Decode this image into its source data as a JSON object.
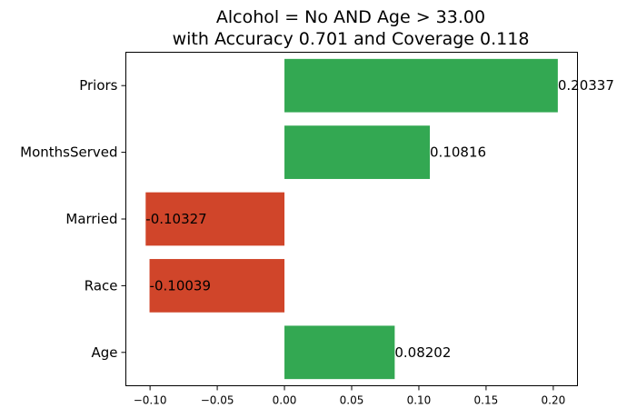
{
  "chart_data": {
    "type": "bar",
    "orientation": "horizontal",
    "title_line1": "Alcohol = No AND Age > 33.00",
    "title_line2": "with Accuracy 0.701 and Coverage 0.118",
    "categories": [
      "Priors",
      "MonthsServed",
      "Married",
      "Race",
      "Age"
    ],
    "values": [
      0.20337,
      0.10816,
      -0.10327,
      -0.10039,
      0.08202
    ],
    "value_labels": [
      "0.20337",
      "0.10816",
      "-0.10327",
      "-0.10039",
      "0.08202"
    ],
    "xlim": [
      -0.118,
      0.218
    ],
    "xticks": [
      -0.1,
      -0.05,
      0.0,
      0.05,
      0.1,
      0.15,
      0.2
    ],
    "xtick_labels": [
      "−0.10",
      "−0.05",
      "0.00",
      "0.05",
      "0.10",
      "0.15",
      "0.20"
    ],
    "xlabel": "",
    "ylabel": "",
    "grid": false,
    "colors": {
      "positive": "#33a852",
      "negative": "#d0452a"
    }
  }
}
